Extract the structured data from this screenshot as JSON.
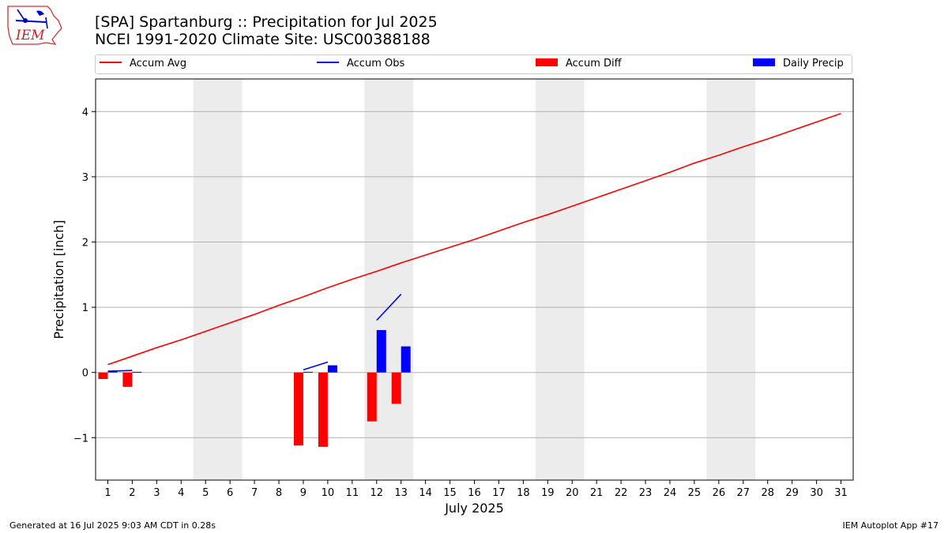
{
  "header": {
    "title_line1": "[SPA] Spartanburg :: Precipitation for Jul 2025",
    "title_line2": "NCEI 1991-2020 Climate Site: USC00388188"
  },
  "logo": {
    "text": "IEM"
  },
  "legend": {
    "items": [
      {
        "label": "Accum Avg",
        "kind": "line",
        "color": "#ff0000"
      },
      {
        "label": "Accum Obs",
        "kind": "line",
        "color": "#0000ff"
      },
      {
        "label": "Accum Diff",
        "kind": "bar",
        "color": "#ff0000"
      },
      {
        "label": "Daily Precip",
        "kind": "bar",
        "color": "#0000ff"
      }
    ]
  },
  "footer": {
    "left": "Generated at 16 Jul 2025 9:03 AM CDT in 0.28s",
    "right": "IEM Autoplot App #17"
  },
  "chart_data": {
    "type": "bar",
    "title": "[SPA] Spartanburg :: Precipitation for Jul 2025",
    "subtitle": "NCEI 1991-2020 Climate Site: USC00388188",
    "xlabel": "July 2025",
    "ylabel": "Precipitation [inch]",
    "x": [
      1,
      2,
      3,
      4,
      5,
      6,
      7,
      8,
      9,
      10,
      11,
      12,
      13,
      14,
      15,
      16,
      17,
      18,
      19,
      20,
      21,
      22,
      23,
      24,
      25,
      26,
      27,
      28,
      29,
      30,
      31
    ],
    "xlim": [
      0.5,
      31.5
    ],
    "ylim": [
      -1.65,
      4.5
    ],
    "yticks": [
      -1,
      0,
      1,
      2,
      3,
      4
    ],
    "ytick_labels": [
      "−1",
      "0",
      "1",
      "2",
      "3",
      "4"
    ],
    "grid": "horizontal",
    "legend_position": "top",
    "weekend_shading": [
      [
        4.5,
        6.5
      ],
      [
        11.5,
        13.5
      ],
      [
        18.5,
        20.5
      ],
      [
        25.5,
        27.5
      ]
    ],
    "series": [
      {
        "name": "Accum Avg",
        "kind": "line",
        "color": "#ff0000",
        "x": [
          1,
          2,
          3,
          4,
          5,
          6,
          7,
          8,
          9,
          10,
          11,
          12,
          13,
          14,
          15,
          16,
          17,
          18,
          19,
          20,
          21,
          22,
          23,
          24,
          25,
          26,
          27,
          28,
          29,
          30,
          31
        ],
        "values": [
          0.12,
          0.25,
          0.38,
          0.5,
          0.63,
          0.76,
          0.89,
          1.03,
          1.16,
          1.3,
          1.43,
          1.55,
          1.68,
          1.8,
          1.92,
          2.04,
          2.17,
          2.3,
          2.42,
          2.55,
          2.68,
          2.81,
          2.94,
          3.07,
          3.21,
          3.33,
          3.46,
          3.58,
          3.71,
          3.84,
          3.97
        ]
      },
      {
        "name": "Accum Obs",
        "kind": "line",
        "color": "#0000ff",
        "segments": [
          {
            "x": [
              1,
              2
            ],
            "values": [
              0.02,
              0.03
            ]
          },
          {
            "x": [
              9,
              10
            ],
            "values": [
              0.04,
              0.16
            ]
          },
          {
            "x": [
              12,
              13
            ],
            "values": [
              0.8,
              1.2
            ]
          }
        ]
      },
      {
        "name": "Accum Diff",
        "kind": "bar",
        "color": "#ff0000",
        "x": [
          1,
          2,
          9,
          10,
          12,
          13
        ],
        "values": [
          -0.1,
          -0.22,
          -1.12,
          -1.14,
          -0.75,
          -0.48
        ]
      },
      {
        "name": "Daily Precip",
        "kind": "bar",
        "color": "#0000ff",
        "x": [
          1,
          2,
          9,
          10,
          12,
          13
        ],
        "values": [
          0.02,
          0.01,
          0.01,
          0.11,
          0.65,
          0.4
        ]
      }
    ]
  }
}
